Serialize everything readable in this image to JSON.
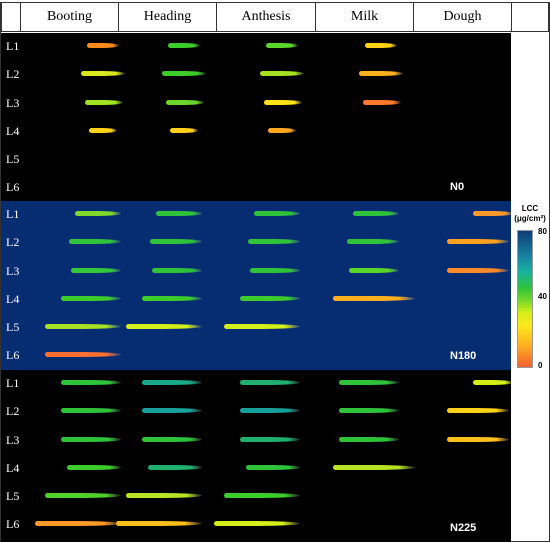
{
  "columns": [
    "Booting",
    "Heading",
    "Anthesis",
    "Milk",
    "Dough"
  ],
  "row_labels": [
    "L1",
    "L2",
    "L3",
    "L4",
    "L5",
    "L6"
  ],
  "panels": [
    {
      "treatment": "N0",
      "background": "#000000",
      "leaves": [
        [
          "#ff8c1a",
          "#3ccd2a",
          "#5ad62a",
          "#ffd21a",
          null
        ],
        [
          "#d9e81f",
          "#3ccd2a",
          "#a6df22",
          "#ffb01f",
          null
        ],
        [
          "#9ee422",
          "#6ad62a",
          "#ffe21a",
          "#ff7a2a",
          null
        ],
        [
          "#ffd21a",
          "#ffd01a",
          "#ffa81f",
          null,
          null
        ],
        [
          "#ffa81f",
          "#ff8c2a",
          "#ff6a30",
          null,
          null
        ],
        [
          "#ff7a30",
          null,
          null,
          null,
          null
        ]
      ]
    },
    {
      "treatment": "N180",
      "background": "#062d72",
      "leaves": [
        [
          "#7fd82a",
          "#2fc33a",
          "#2fc33a",
          "#2fc33a",
          "#ff9a2a"
        ],
        [
          "#2fc33a",
          "#2fc33a",
          "#2fc33a",
          "#2fc33a",
          "#ffa01f"
        ],
        [
          "#35c73a",
          "#2fc33a",
          "#2fc33a",
          "#5ad62a",
          "#ff8a2a"
        ],
        [
          "#3ccd2a",
          "#3ccd2a",
          "#3ccd2a",
          "#ffb01f",
          null
        ],
        [
          "#a8e024",
          "#d4ee1a",
          "#d4ee1a",
          null,
          null
        ],
        [
          "#ff7030",
          null,
          null,
          null,
          null
        ]
      ]
    },
    {
      "treatment": "N225",
      "background": "#000000",
      "leaves": [
        [
          "#2fc33a",
          "#1aa98a",
          "#1fb070",
          "#2fc33a",
          "#d4ee1a"
        ],
        [
          "#2fc33a",
          "#18a09a",
          "#18a09a",
          "#2fc33a",
          "#ffd21a"
        ],
        [
          "#2fc33a",
          "#2fc33a",
          "#1fb070",
          "#2fc33a",
          "#ffc01a"
        ],
        [
          "#3ccd2a",
          "#1fb070",
          "#2fc33a",
          "#b6e424",
          null
        ],
        [
          "#4fd02a",
          "#b6e424",
          "#3ccd2a",
          null,
          null
        ],
        [
          "#ff9a2a",
          "#ffc01a",
          "#d4ee1a",
          null,
          null
        ]
      ]
    }
  ],
  "colorbar": {
    "title_line1": "LCC",
    "title_line2": "(μg/cm²)",
    "max": "80",
    "mid": "40",
    "min": "0"
  }
}
